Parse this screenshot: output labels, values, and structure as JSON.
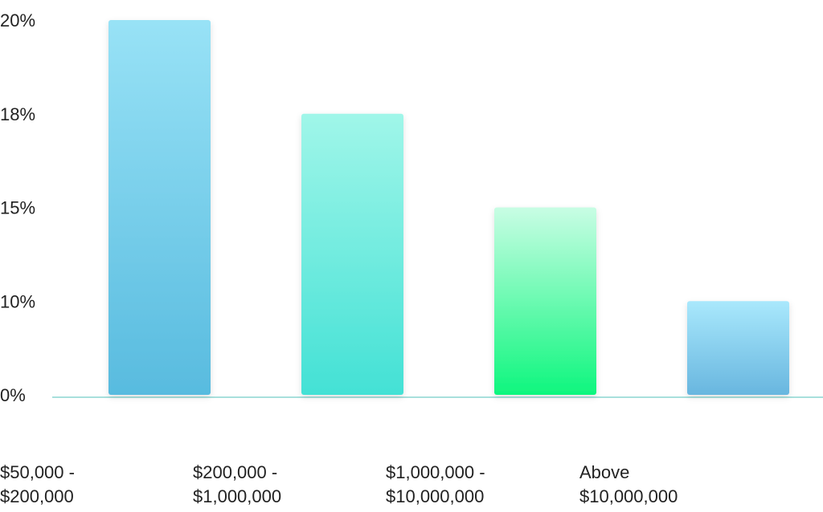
{
  "chart_data": {
    "type": "bar",
    "categories": [
      [
        "$50,000 -",
        "$200,000"
      ],
      [
        "$200,000 -",
        "$1,000,000"
      ],
      [
        "$1,000,000 -",
        "$10,000,000"
      ],
      [
        "Above",
        "$10,000,000"
      ]
    ],
    "values": [
      20,
      18,
      15,
      10
    ],
    "colors": [
      [
        "#98e2f6",
        "#58bbdf"
      ],
      [
        "#a0f6e9",
        "#43e1d5"
      ],
      [
        "#c8fde4",
        "#0ef67e"
      ],
      [
        "#a9e8fc",
        "#68b6df"
      ]
    ],
    "ylim": [
      0,
      20
    ],
    "yticks": [
      {
        "value": 0,
        "label": "0%"
      },
      {
        "value": 10,
        "label": "10%"
      },
      {
        "value": 15,
        "label": "15%"
      },
      {
        "value": 18,
        "label": "18%"
      },
      {
        "value": 20,
        "label": "20%"
      }
    ],
    "axis_color": "#a8e0dc"
  }
}
